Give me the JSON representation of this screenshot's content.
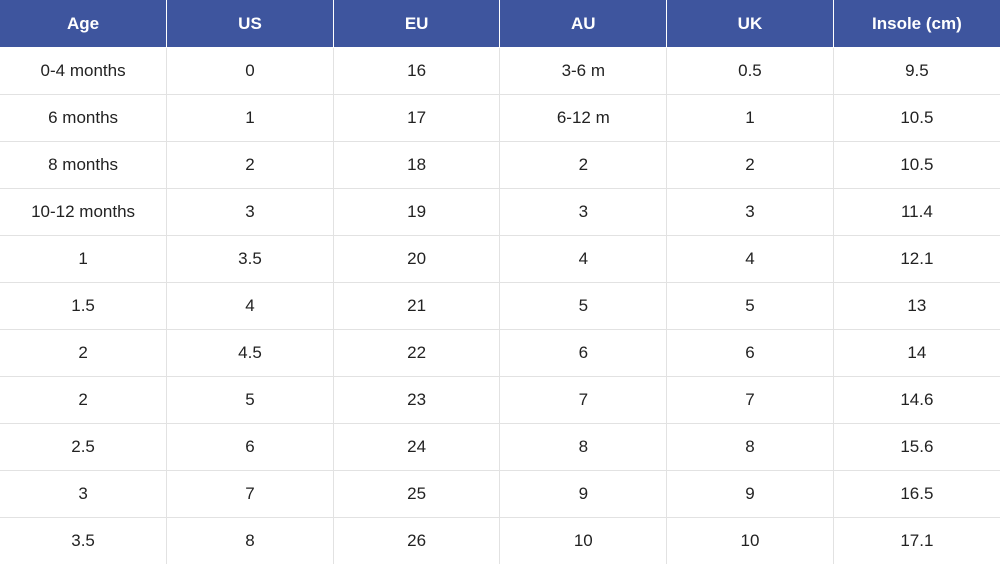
{
  "table": {
    "header_bg": "#3e559e",
    "header_text_color": "#ffffff",
    "columns": [
      "Age",
      "US",
      "EU",
      "AU",
      "UK",
      "Insole (cm)"
    ],
    "rows": [
      [
        "0-4 months",
        "0",
        "16",
        "3-6 m",
        "0.5",
        "9.5"
      ],
      [
        "6 months",
        "1",
        "17",
        "6-12 m",
        "1",
        "10.5"
      ],
      [
        "8 months",
        "2",
        "18",
        "2",
        "2",
        "10.5"
      ],
      [
        "10-12 months",
        "3",
        "19",
        "3",
        "3",
        "11.4"
      ],
      [
        "1",
        "3.5",
        "20",
        "4",
        "4",
        "12.1"
      ],
      [
        "1.5",
        "4",
        "21",
        "5",
        "5",
        "13"
      ],
      [
        "2",
        "4.5",
        "22",
        "6",
        "6",
        "14"
      ],
      [
        "2",
        "5",
        "23",
        "7",
        "7",
        "14.6"
      ],
      [
        "2.5",
        "6",
        "24",
        "8",
        "8",
        "15.6"
      ],
      [
        "3",
        "7",
        "25",
        "9",
        "9",
        "16.5"
      ],
      [
        "3.5",
        "8",
        "26",
        "10",
        "10",
        "17.1"
      ]
    ]
  }
}
